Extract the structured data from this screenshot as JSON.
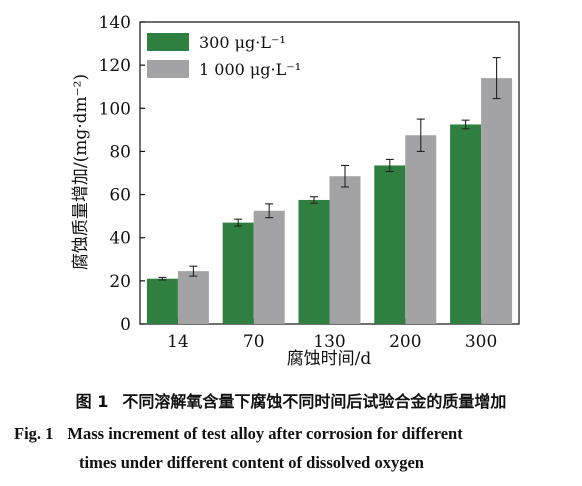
{
  "chart_data": {
    "type": "bar",
    "title": "",
    "xlabel": "腐蚀时间/d",
    "ylabel": "腐蚀质量增加/(mg·dm⁻²)",
    "categories": [
      "14",
      "70",
      "130",
      "200",
      "300"
    ],
    "ylim": [
      0,
      140
    ],
    "yticks": [
      0,
      20,
      40,
      60,
      80,
      100,
      120,
      140
    ],
    "grid": false,
    "legend_position": "top-left",
    "series": [
      {
        "name": "300 μg·L⁻¹",
        "color": "#2f8040",
        "values": [
          21,
          47,
          57.5,
          73.5,
          92.5
        ],
        "errors": [
          0.6,
          1.6,
          1.5,
          2.8,
          2.0
        ]
      },
      {
        "name": "1 000 μg·L⁻¹",
        "color": "#a3a3a6",
        "values": [
          24.5,
          52.5,
          68.5,
          87.5,
          114
        ],
        "errors": [
          2.3,
          3.2,
          5.0,
          7.5,
          9.5
        ]
      }
    ]
  },
  "captions": {
    "zh_label": "图 1",
    "zh_text": "不同溶解氧含量下腐蚀不同时间后试验合金的质量增加",
    "en_label": "Fig. 1",
    "en_line1": "Mass increment of test alloy after corrosion for different",
    "en_line2": "times under different content of dissolved oxygen"
  }
}
